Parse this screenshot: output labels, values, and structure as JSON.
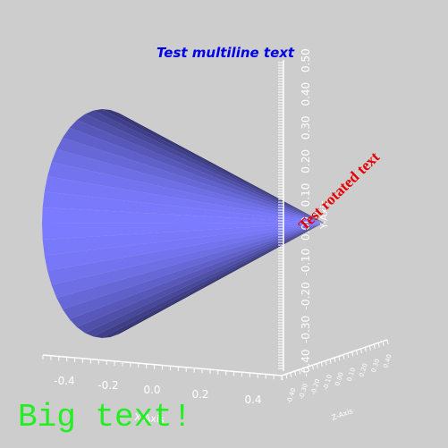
{
  "scene": {
    "background_color": "#cdcdcd",
    "cone_color": "#7b7bff",
    "axis_color": "#ffffff",
    "multiline_text": "Test multiline text",
    "multiline_color": "#0000e6",
    "rotated_text": "Test rotated text",
    "rotated_color": "#e60000",
    "big_text": "Big text!",
    "big_color": "#22ee22"
  },
  "axes": {
    "x": {
      "title": "X-Axis",
      "ticks": [
        "-0.4",
        "-0.2",
        "0.0",
        "0.2",
        "0.4"
      ]
    },
    "y": {
      "title": "Y-Axis",
      "ticks": [
        "-0.40",
        "-0.30",
        "-0.20",
        "-0.10",
        "0.00",
        "0.10",
        "0.20",
        "0.30",
        "0.40",
        "0.50"
      ]
    },
    "z": {
      "title": "Z-Axis",
      "ticks": [
        "-0.40",
        "-0.30",
        "-0.20",
        "-0.10",
        "0.00",
        "0.10",
        "0.20",
        "0.30",
        "0.40"
      ]
    }
  }
}
